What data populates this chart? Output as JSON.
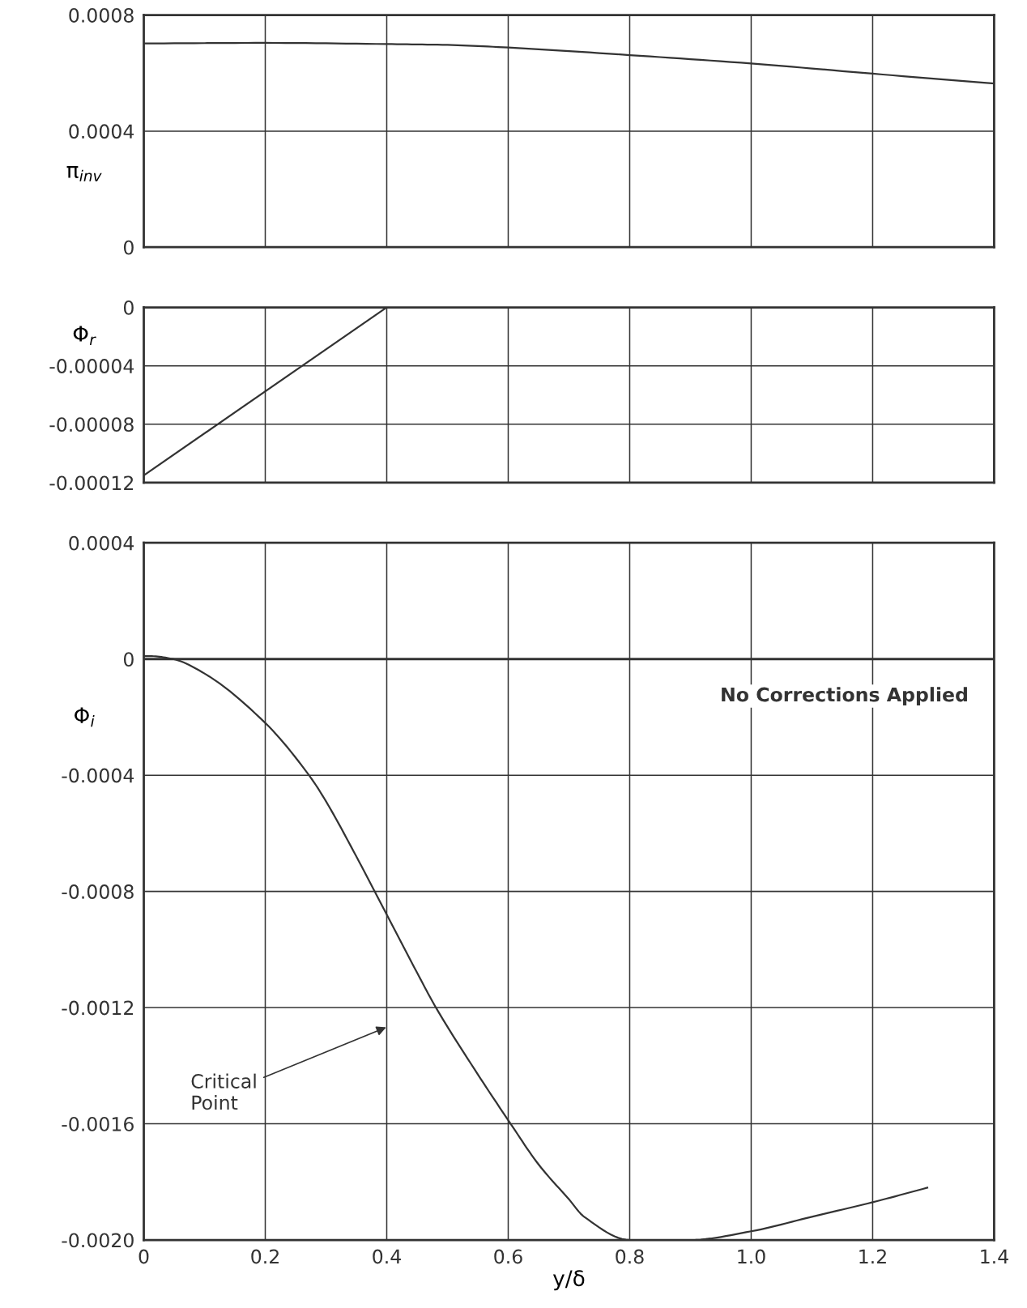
{
  "chart_data": [
    {
      "type": "line",
      "ylabel": "π$_{inv}$",
      "x": [
        0,
        0.2,
        0.4,
        0.5,
        0.6,
        0.8,
        1.0,
        1.2,
        1.4
      ],
      "series": [
        {
          "color": "#333333",
          "values": [
            0.000702,
            0.000704,
            0.0007,
            0.000697,
            0.000688,
            0.000662,
            0.000633,
            0.000598,
            0.000564
          ]
        }
      ],
      "xlim": [
        0,
        1.4
      ],
      "xticks": [
        0,
        0.2,
        0.4,
        0.6,
        0.8,
        1.0,
        1.2,
        1.4
      ],
      "ylim": [
        0,
        0.0008
      ],
      "yticks": [
        0,
        0.0004,
        0.0008
      ],
      "grid": true,
      "tick_labels": "y"
    },
    {
      "type": "line",
      "ylabel": "Φ$_{r}$",
      "x": [
        0,
        0.4
      ],
      "series": [
        {
          "color": "#333333",
          "values": [
            -0.000115,
            0
          ]
        }
      ],
      "xlim": [
        0,
        1.4
      ],
      "xticks": [
        0,
        0.2,
        0.4,
        0.6,
        0.8,
        1.0,
        1.2,
        1.4
      ],
      "ylim": [
        -0.00012,
        0
      ],
      "yticks": [
        0,
        {
          "value": -4e-05,
          "label": "-0.00004"
        },
        {
          "value": -8e-05,
          "label": "-0.00008"
        },
        {
          "value": -0.00012,
          "label": "-0.00012"
        }
      ],
      "grid": true,
      "tick_labels": "y"
    },
    {
      "type": "line",
      "ylabel": "Φ$_{i}$",
      "xlabel": "y/δ",
      "x": [
        0,
        0.01,
        0.048,
        0.1,
        0.2,
        0.272,
        0.3,
        0.35,
        0.4,
        0.45,
        0.481,
        0.55,
        0.604,
        0.65,
        0.7,
        0.725,
        0.8,
        0.9,
        1.0,
        1.1,
        1.2,
        1.29
      ],
      "series": [
        {
          "color": "#333333",
          "values": [
            1e-05,
            1e-05,
            0,
            -5e-05,
            -0.00022,
            -0.0004,
            -0.00049,
            -0.00068,
            -0.00088,
            -0.00108,
            -0.0012,
            -0.00143,
            -0.0016,
            -0.00174,
            -0.00186,
            -0.00192,
            -0.002,
            -0.002,
            -0.00197,
            -0.00192,
            -0.00187,
            -0.00182
          ]
        }
      ],
      "xlim": [
        0,
        1.4
      ],
      "xticks": [
        0,
        0.2,
        0.4,
        0.6,
        0.8,
        {
          "value": 1.0,
          "label": "1.0"
        },
        1.2,
        1.4
      ],
      "ylim": [
        -0.002,
        0.0004
      ],
      "yticks": [
        0.0004,
        0,
        {
          "value": -0.0004,
          "label": "-0.0004"
        },
        {
          "value": -0.0008,
          "label": "-0.0008"
        },
        {
          "value": -0.0012,
          "label": "-0.0012"
        },
        {
          "value": -0.0016,
          "label": "-0.0016"
        },
        {
          "value": -0.002,
          "label": "-0.0020"
        }
      ],
      "grid": true,
      "ref_lines": [
        {
          "axis": "y",
          "value": 0,
          "color": "#333333"
        }
      ],
      "annotations": [
        "No Corrections Applied",
        "Critical\nPoint"
      ]
    }
  ]
}
